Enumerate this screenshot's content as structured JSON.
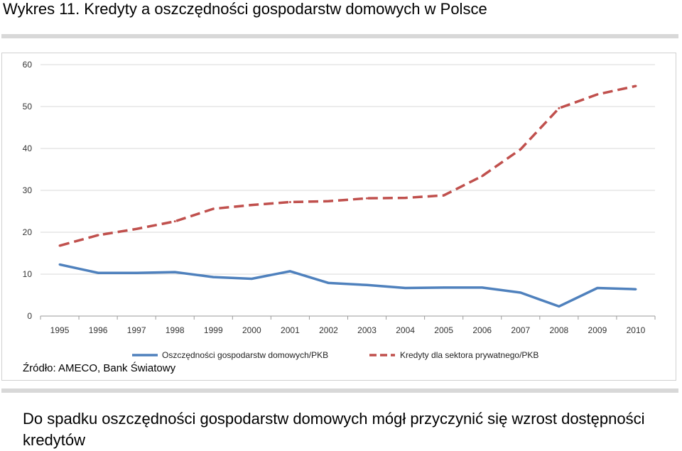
{
  "page": {
    "title": "Wykres 11. Kredyty a oszczędności gospodarstw domowych w Polsce",
    "source": "Źródło: AMECO, Bank Światowy",
    "caption": "Do spadku oszczędności gospodarstw domowych mógł przyczynić się wzrost dostępności kredytów"
  },
  "chart_data": {
    "type": "line",
    "title": "",
    "xlabel": "",
    "ylabel": "",
    "ylim": [
      0,
      60
    ],
    "yticks": [
      0,
      10,
      20,
      30,
      40,
      50,
      60
    ],
    "grid": true,
    "legend_position": "bottom",
    "x": [
      "1995",
      "1996",
      "1997",
      "1998",
      "1999",
      "2000",
      "2001",
      "2002",
      "2003",
      "2004",
      "2005",
      "2006",
      "2007",
      "2008",
      "2009",
      "2010"
    ],
    "series": [
      {
        "name": "Oszczędności gospodarstw domowych/PKB",
        "style": "solid",
        "color": "#4f81bd",
        "values": [
          12.3,
          10.3,
          10.3,
          10.5,
          9.3,
          8.9,
          10.7,
          7.9,
          7.4,
          6.7,
          6.8,
          6.8,
          5.6,
          2.3,
          6.7,
          6.4
        ]
      },
      {
        "name": "Kredyty dla sektora prywatnego/PKB",
        "style": "dashed",
        "color": "#c0504d",
        "values": [
          16.8,
          19.3,
          20.8,
          22.6,
          25.6,
          26.5,
          27.2,
          27.4,
          28.1,
          28.2,
          28.8,
          33.4,
          39.8,
          49.6,
          52.9,
          54.9
        ]
      }
    ]
  }
}
